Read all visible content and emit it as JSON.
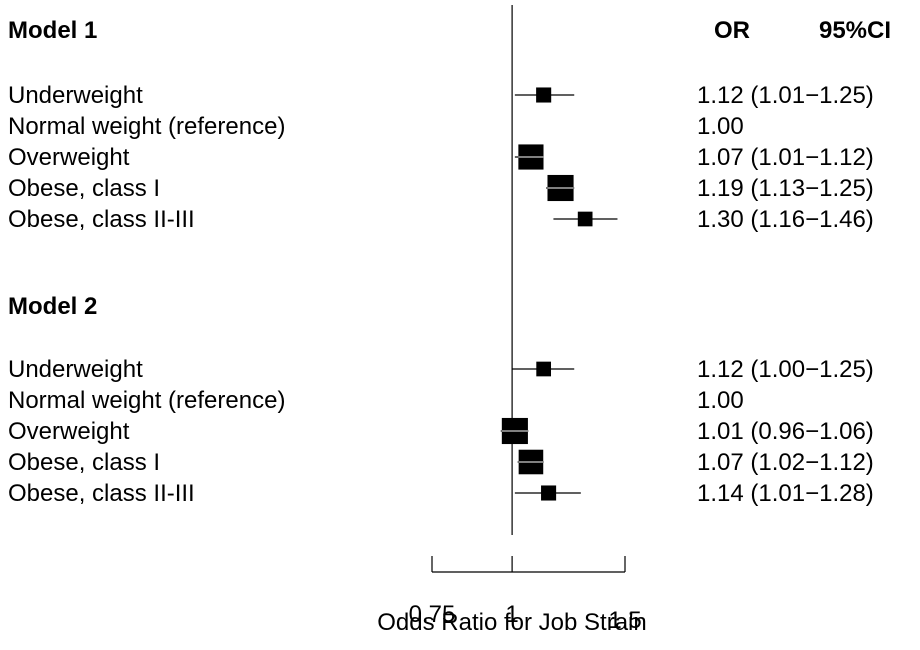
{
  "chart_data": {
    "type": "forest",
    "column_headers": {
      "or": "OR",
      "ci": "95%CI"
    },
    "xlabel": "Odds Ratio for Job Strain",
    "x_scale": "log",
    "xlim": [
      0.75,
      1.5
    ],
    "x_ticks": [
      0.75,
      1,
      1.5
    ],
    "x_tick_labels": [
      "0.75",
      "1",
      "1.5"
    ],
    "reference_line": 1,
    "marker_color": "#000000",
    "groups": [
      {
        "title": "Model 1",
        "rows": [
          {
            "label": "Underweight",
            "or": 1.12,
            "lo": 1.01,
            "hi": 1.25,
            "text": "1.12 (1.01−1.25)",
            "weight": 0.32
          },
          {
            "label": "Normal weight (reference)",
            "or": 1.0,
            "lo": null,
            "hi": null,
            "text": "1.00",
            "weight": 0
          },
          {
            "label": "Overweight",
            "or": 1.07,
            "lo": 1.01,
            "hi": 1.12,
            "text": "1.07 (1.01−1.12)",
            "weight": 0.85
          },
          {
            "label": "Obese, class I",
            "or": 1.19,
            "lo": 1.13,
            "hi": 1.25,
            "text": "1.19 (1.13−1.25)",
            "weight": 0.9
          },
          {
            "label": "Obese, class II-III",
            "or": 1.3,
            "lo": 1.16,
            "hi": 1.46,
            "text": "1.30 (1.16−1.46)",
            "weight": 0.3
          }
        ]
      },
      {
        "title": "Model 2",
        "rows": [
          {
            "label": "Underweight",
            "or": 1.12,
            "lo": 1.0,
            "hi": 1.25,
            "text": "1.12 (1.00−1.25)",
            "weight": 0.3
          },
          {
            "label": "Normal weight (reference)",
            "or": 1.0,
            "lo": null,
            "hi": null,
            "text": "1.00",
            "weight": 0
          },
          {
            "label": "Overweight",
            "or": 1.01,
            "lo": 0.96,
            "hi": 1.06,
            "text": "1.01 (0.96−1.06)",
            "weight": 0.9
          },
          {
            "label": "Obese, class I",
            "or": 1.07,
            "lo": 1.02,
            "hi": 1.12,
            "text": "1.07 (1.02−1.12)",
            "weight": 0.82
          },
          {
            "label": "Obese, class II-III",
            "or": 1.14,
            "lo": 1.01,
            "hi": 1.28,
            "text": "1.14 (1.01−1.28)",
            "weight": 0.32
          }
        ]
      }
    ]
  }
}
